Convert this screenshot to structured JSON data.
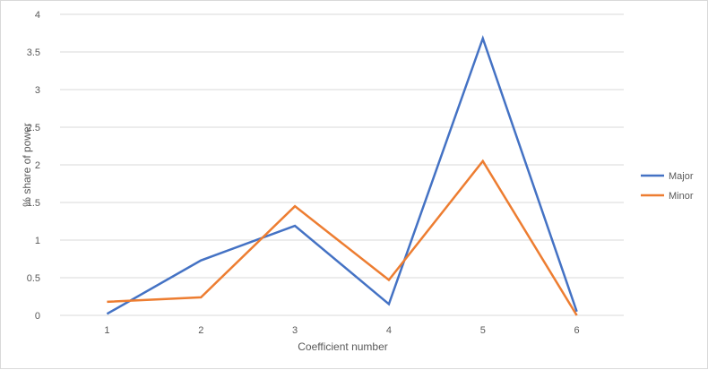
{
  "chart_data": {
    "type": "line",
    "title": "",
    "xlabel": "Coefficient number",
    "ylabel": "% share of power",
    "x": [
      1,
      2,
      3,
      4,
      5,
      6
    ],
    "x_tick_labels": [
      "1",
      "2",
      "3",
      "4",
      "5",
      "6"
    ],
    "ylim": [
      0,
      4
    ],
    "y_ticks": [
      0,
      0.5,
      1,
      1.5,
      2,
      2.5,
      3,
      3.5,
      4
    ],
    "y_tick_labels": [
      "0",
      "0.5",
      "1",
      "1.5",
      "2",
      "2.5",
      "3",
      "3.5",
      "4"
    ],
    "grid": "horizontal",
    "legend_position": "right",
    "series": [
      {
        "name": "Major",
        "color": "#4472c4",
        "values": [
          0.02,
          0.73,
          1.19,
          0.15,
          3.68,
          0.05
        ]
      },
      {
        "name": "Minor",
        "color": "#ed7d31",
        "values": [
          0.18,
          0.24,
          1.45,
          0.47,
          2.05,
          0.0
        ]
      }
    ]
  }
}
